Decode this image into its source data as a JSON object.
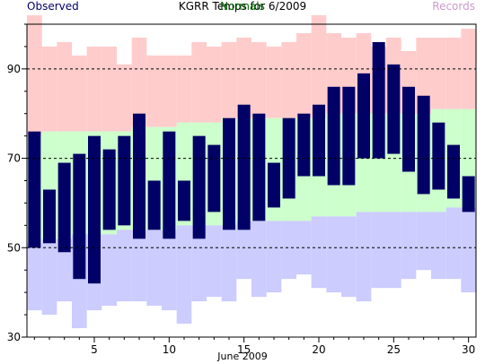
{
  "chart_data": {
    "type": "floating-bar",
    "title": "KGRR Temps for 6/2009",
    "xlabel": "June 2009",
    "ylabel": "",
    "xlim": [
      0.5,
      30.5
    ],
    "ylim": [
      30,
      100
    ],
    "xticks": [
      5,
      10,
      15,
      20,
      25,
      30
    ],
    "yticks": [
      30,
      50,
      70,
      90
    ],
    "gridlines_y": [
      50,
      70,
      90
    ],
    "legend": [
      {
        "label": "Observed",
        "color": "#000066",
        "position": "top-left"
      },
      {
        "label": "Normals",
        "color": "#006600",
        "position": "top-center"
      },
      {
        "label": "Records",
        "color": "#cc99cc",
        "position": "top-right"
      }
    ],
    "colors": {
      "observed": "#000066",
      "normal": "#ccffcc",
      "record_high": "#ffcccc",
      "record_low": "#ccccff"
    },
    "days": [
      1,
      2,
      3,
      4,
      5,
      6,
      7,
      8,
      9,
      10,
      11,
      12,
      13,
      14,
      15,
      16,
      17,
      18,
      19,
      20,
      21,
      22,
      23,
      24,
      25,
      26,
      27,
      28,
      29,
      30
    ],
    "record_high": [
      102,
      95,
      96,
      93,
      95,
      95,
      91,
      97,
      93,
      93,
      93,
      96,
      95,
      96,
      97,
      96,
      95,
      96,
      98,
      102,
      98,
      97,
      98,
      95,
      97,
      94,
      97,
      97,
      97,
      99
    ],
    "record_low": [
      36,
      35,
      38,
      32,
      36,
      37,
      38,
      38,
      37,
      36,
      33,
      38,
      39,
      38,
      43,
      39,
      40,
      43,
      44,
      41,
      40,
      39,
      38,
      41,
      41,
      43,
      45,
      43,
      43,
      40
    ],
    "normal_high": [
      75,
      76,
      76,
      76,
      76,
      76,
      76,
      77,
      77,
      77,
      78,
      78,
      78,
      79,
      79,
      79,
      79,
      79,
      79,
      79,
      80,
      80,
      80,
      80,
      80,
      80,
      80,
      81,
      81,
      81
    ],
    "normal_low": [
      51,
      52,
      52,
      53,
      53,
      53,
      54,
      54,
      54,
      54,
      55,
      55,
      55,
      55,
      56,
      56,
      56,
      56,
      56,
      57,
      57,
      57,
      58,
      58,
      58,
      58,
      58,
      58,
      59,
      59
    ],
    "observed_high": [
      76,
      63,
      69,
      71,
      75,
      72,
      75,
      80,
      65,
      76,
      65,
      75,
      73,
      79,
      82,
      80,
      69,
      79,
      80,
      82,
      86,
      86,
      89,
      96,
      91,
      86,
      84,
      78,
      73,
      66
    ],
    "observed_low": [
      50,
      51,
      49,
      43,
      42,
      54,
      55,
      52,
      54,
      52,
      56,
      52,
      58,
      54,
      54,
      56,
      59,
      61,
      66,
      66,
      64,
      64,
      70,
      70,
      71,
      67,
      62,
      63,
      61,
      58
    ]
  }
}
